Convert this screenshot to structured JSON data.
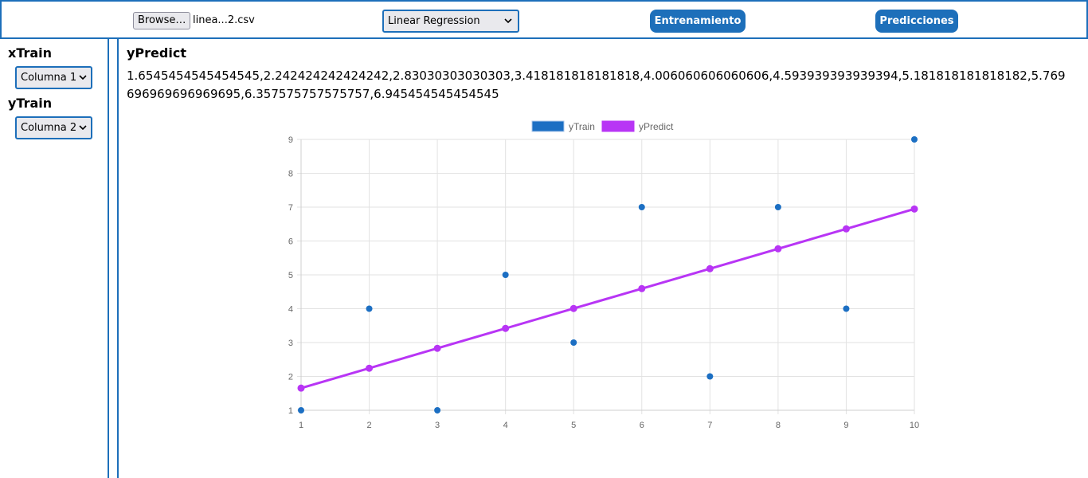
{
  "toolbar": {
    "browse_label": "Browse…",
    "file_name": "linea...2.csv",
    "model_selected": "Linear Regression",
    "train_label": "Entrenamiento",
    "predict_label": "Predicciones"
  },
  "sidebar": {
    "xtrain_label": "xTrain",
    "xtrain_selected": "Columna 1",
    "ytrain_label": "yTrain",
    "ytrain_selected": "Columna 2"
  },
  "main": {
    "ypredict_title": "yPredict",
    "ypredict_values": "1.6545454545454545,2.242424242424242,2.83030303030303,3.418181818181818,4.006060606060606,4.593939393939394,5.181818181818182,5.769696969696969695,6.357575757575757,6.945454545454545"
  },
  "colors": {
    "accent": "#1d6fba",
    "ytrain": "#1c6fc3",
    "ypredict": "#b835f5"
  },
  "chart_data": {
    "type": "line",
    "legend_position": "top",
    "grid": true,
    "xlim": [
      1,
      10
    ],
    "ylim": [
      1,
      9
    ],
    "x_ticks": [
      1,
      2,
      3,
      4,
      5,
      6,
      7,
      8,
      9,
      10
    ],
    "y_ticks": [
      1,
      2,
      3,
      4,
      5,
      6,
      7,
      8,
      9
    ],
    "series": [
      {
        "name": "yTrain",
        "style": "scatter",
        "x": [
          1,
          2,
          3,
          4,
          5,
          6,
          7,
          8,
          9,
          10
        ],
        "y": [
          1,
          4,
          1,
          5,
          3,
          7,
          2,
          7,
          4,
          9
        ]
      },
      {
        "name": "yPredict",
        "style": "line",
        "x": [
          1,
          2,
          3,
          4,
          5,
          6,
          7,
          8,
          9,
          10
        ],
        "y": [
          1.6545454545454545,
          2.242424242424242,
          2.83030303030303,
          3.418181818181818,
          4.006060606060606,
          4.593939393939394,
          5.181818181818182,
          5.769696969696969,
          6.357575757575757,
          6.945454545454545
        ]
      }
    ]
  }
}
